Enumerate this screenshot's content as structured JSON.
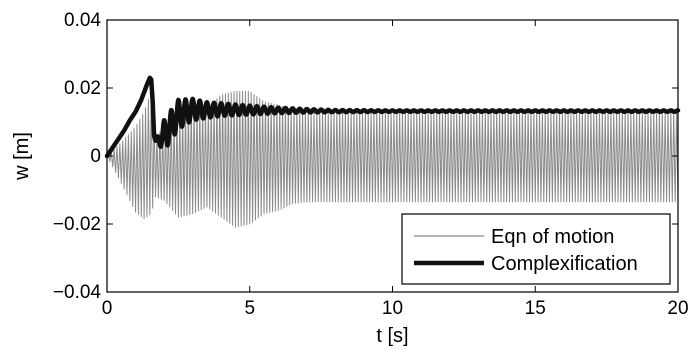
{
  "chart_data": {
    "type": "line",
    "title": "",
    "xlabel": "t [s]",
    "ylabel": "w [m]",
    "xlim": [
      0,
      20
    ],
    "ylim": [
      -0.04,
      0.04
    ],
    "xticks": [
      0,
      5,
      10,
      15,
      20
    ],
    "xtick_labels": [
      "0",
      "5",
      "10",
      "15",
      "20"
    ],
    "yticks": [
      -0.04,
      -0.02,
      0,
      0.02,
      0.04
    ],
    "ytick_labels": [
      "−0.04",
      "−0.02",
      "0",
      "0.02",
      "0.04"
    ],
    "grid": false,
    "legend_position": "bottom-right",
    "series": [
      {
        "name": "Eqn of motion",
        "color": "#8a8a8a",
        "style": "thin-oscillating",
        "oscillation_period": 0.1,
        "envelope": {
          "t": [
            0,
            0.5,
            1.0,
            1.3,
            1.55,
            1.7,
            2.0,
            2.5,
            3.0,
            3.5,
            4.0,
            4.5,
            5.0,
            5.5,
            6.0,
            6.5,
            7.0,
            8.0,
            10.0,
            20.0
          ],
          "upper": [
            0,
            0.004,
            0.0085,
            0.013,
            0.019,
            0.006,
            0.008,
            0.012,
            0.015,
            0.014,
            0.018,
            0.019,
            0.019,
            0.016,
            0.015,
            0.0135,
            0.013,
            0.013,
            0.013,
            0.013
          ],
          "lower": [
            0,
            -0.008,
            -0.0165,
            -0.0185,
            -0.017,
            -0.012,
            -0.013,
            -0.018,
            -0.017,
            -0.015,
            -0.018,
            -0.021,
            -0.02,
            -0.017,
            -0.016,
            -0.014,
            -0.0135,
            -0.0135,
            -0.0135,
            -0.0135
          ]
        }
      },
      {
        "name": "Complexification",
        "color": "#111111",
        "style": "thick",
        "t": [
          0,
          0.2,
          0.4,
          0.6,
          0.8,
          1.0,
          1.2,
          1.4,
          1.5,
          1.55,
          1.6,
          1.65,
          1.7,
          2.0,
          2.5,
          3.0,
          3.5,
          4.0,
          5.0,
          6.0,
          7.0,
          8.0,
          10.0,
          20.0
        ],
        "upper": [
          0,
          0.0025,
          0.005,
          0.0075,
          0.0105,
          0.013,
          0.0165,
          0.021,
          0.023,
          0.0225,
          0.016,
          0.006,
          0.0045,
          0.0105,
          0.0165,
          0.0168,
          0.0158,
          0.0155,
          0.0148,
          0.0142,
          0.0138,
          0.0135,
          0.0134,
          0.0134
        ],
        "lower": [
          0,
          0.0025,
          0.005,
          0.0075,
          0.0105,
          0.013,
          0.0165,
          0.021,
          0.023,
          0.0225,
          0.016,
          0.006,
          0.0045,
          0.0015,
          0.008,
          0.0105,
          0.0112,
          0.0118,
          0.0122,
          0.0126,
          0.0128,
          0.0129,
          0.013,
          0.013
        ],
        "oscillation_period": 0.25
      }
    ]
  }
}
